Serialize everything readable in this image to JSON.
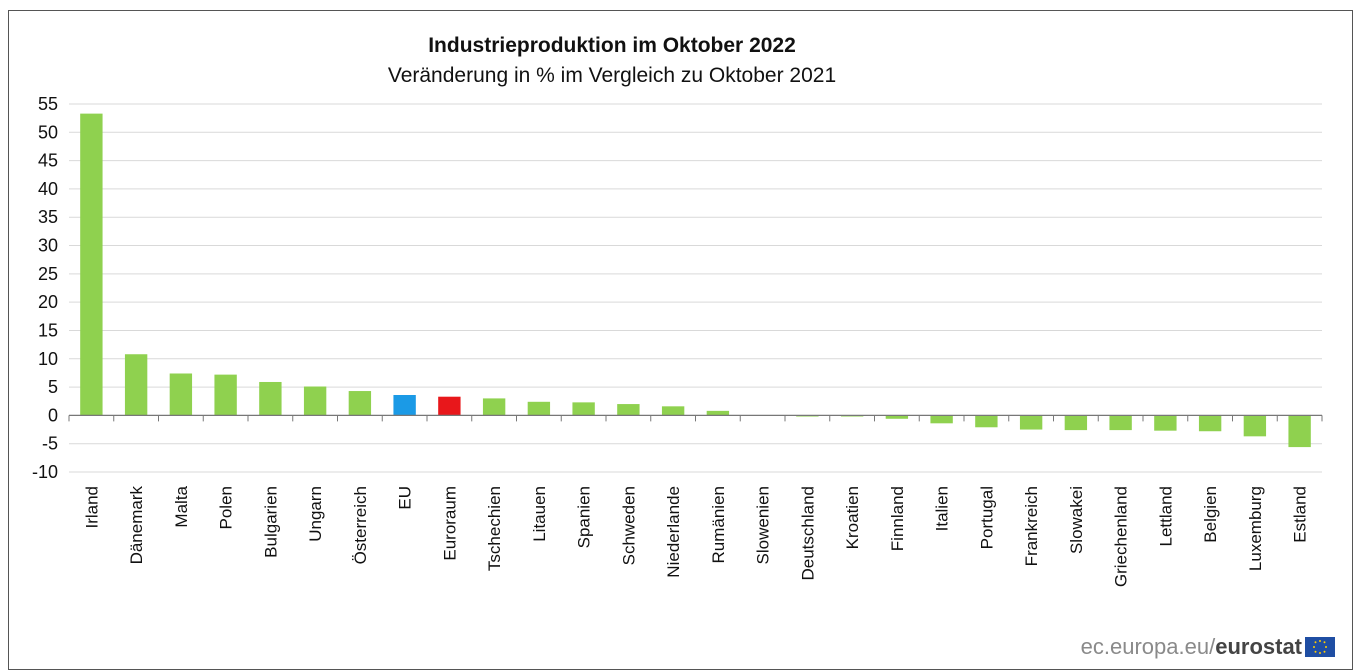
{
  "chart_data": {
    "type": "bar",
    "title": "Industrieproduktion im Oktober 2022",
    "subtitle": "Veränderung in % im Vergleich zu Oktober 2021",
    "xlabel": "",
    "ylabel": "",
    "ylim": [
      -10,
      55
    ],
    "yticks": [
      55,
      50,
      45,
      40,
      35,
      30,
      25,
      20,
      15,
      10,
      5,
      0,
      -5,
      -10
    ],
    "grid": true,
    "legend": "none",
    "categories": [
      "Irland",
      "Dänemark",
      "Malta",
      "Polen",
      "Bulgarien",
      "Ungarn",
      "Österreich",
      "EU",
      "Euroraum",
      "Tschechien",
      "Litauen",
      "Spanien",
      "Schweden",
      "Niederlande",
      "Rumänien",
      "Slowenien",
      "Deutschland",
      "Kroatien",
      "Finnland",
      "Italien",
      "Portugal",
      "Frankreich",
      "Slowakei",
      "Griechenland",
      "Lettland",
      "Belgien",
      "Luxemburg",
      "Estland"
    ],
    "values": [
      53.3,
      10.8,
      7.4,
      7.2,
      5.9,
      5.1,
      4.3,
      3.6,
      3.3,
      3.0,
      2.4,
      2.3,
      2.0,
      1.6,
      0.8,
      0.0,
      -0.2,
      -0.2,
      -0.6,
      -1.4,
      -2.1,
      -2.5,
      -2.6,
      -2.6,
      -2.7,
      -2.8,
      -3.7,
      -5.6
    ],
    "bar_colors": {
      "default": "#8fd14f",
      "EU": "#1b9ae6",
      "Euroraum": "#e8171b"
    }
  },
  "footer": {
    "source_text": "ec.europa.eu/",
    "brand_text": "eurostat"
  },
  "colors": {
    "eu_flag_blue": "#1f4ea3",
    "eu_flag_star": "#ffcc00"
  }
}
